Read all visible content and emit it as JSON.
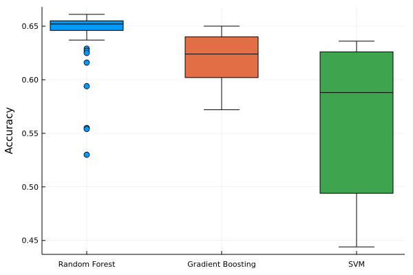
{
  "chart_data": {
    "type": "box",
    "title": "",
    "xlabel": "",
    "ylabel": "Accuracy",
    "ylim": [
      0.437,
      0.668
    ],
    "yticks": [
      0.45,
      0.5,
      0.55,
      0.6,
      0.65
    ],
    "ytick_labels": [
      "0.45",
      "0.50",
      "0.55",
      "0.60",
      "0.65"
    ],
    "grid": true,
    "legend": "none",
    "categories": [
      "Random Forest",
      "Gradient Boosting",
      "SVM"
    ],
    "series": [
      {
        "category": "Random Forest",
        "color": "#009AFA",
        "whisker_low": 0.637,
        "q1": 0.646,
        "median": 0.652,
        "q3": 0.655,
        "whisker_high": 0.661,
        "outliers": [
          0.629,
          0.627,
          0.625,
          0.616,
          0.594,
          0.555,
          0.554,
          0.53
        ]
      },
      {
        "category": "Gradient Boosting",
        "color": "#E26F46",
        "whisker_low": 0.572,
        "q1": 0.602,
        "median": 0.624,
        "q3": 0.64,
        "whisker_high": 0.65,
        "outliers": []
      },
      {
        "category": "SVM",
        "color": "#3EA44E",
        "whisker_low": 0.444,
        "q1": 0.494,
        "median": 0.588,
        "q3": 0.626,
        "whisker_high": 0.636,
        "outliers": []
      }
    ]
  }
}
